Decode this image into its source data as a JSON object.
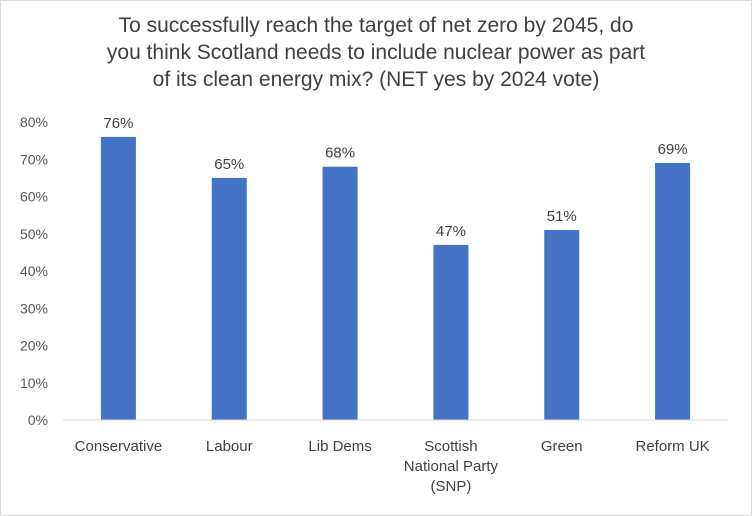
{
  "chart_data": {
    "type": "bar",
    "title_lines": [
      "To successfully reach the target of net zero by 2045, do",
      "you think Scotland needs to include nuclear power as part",
      "of its clean energy mix? (NET yes by 2024 vote)"
    ],
    "categories": [
      [
        "Conservative"
      ],
      [
        "Labour"
      ],
      [
        "Lib Dems"
      ],
      [
        "Scottish",
        "National Party",
        "(SNP)"
      ],
      [
        "Green"
      ],
      [
        "Reform UK"
      ]
    ],
    "values": [
      76,
      65,
      68,
      47,
      51,
      69
    ],
    "data_labels": [
      "76%",
      "65%",
      "68%",
      "47%",
      "51%",
      "69%"
    ],
    "yticks": [
      "0%",
      "10%",
      "20%",
      "30%",
      "40%",
      "50%",
      "60%",
      "70%",
      "80%"
    ],
    "ylim": [
      0,
      80
    ],
    "grid": false,
    "legend": "none",
    "bar_color": "#4472C4",
    "axis_color": "#d9d9d9"
  }
}
